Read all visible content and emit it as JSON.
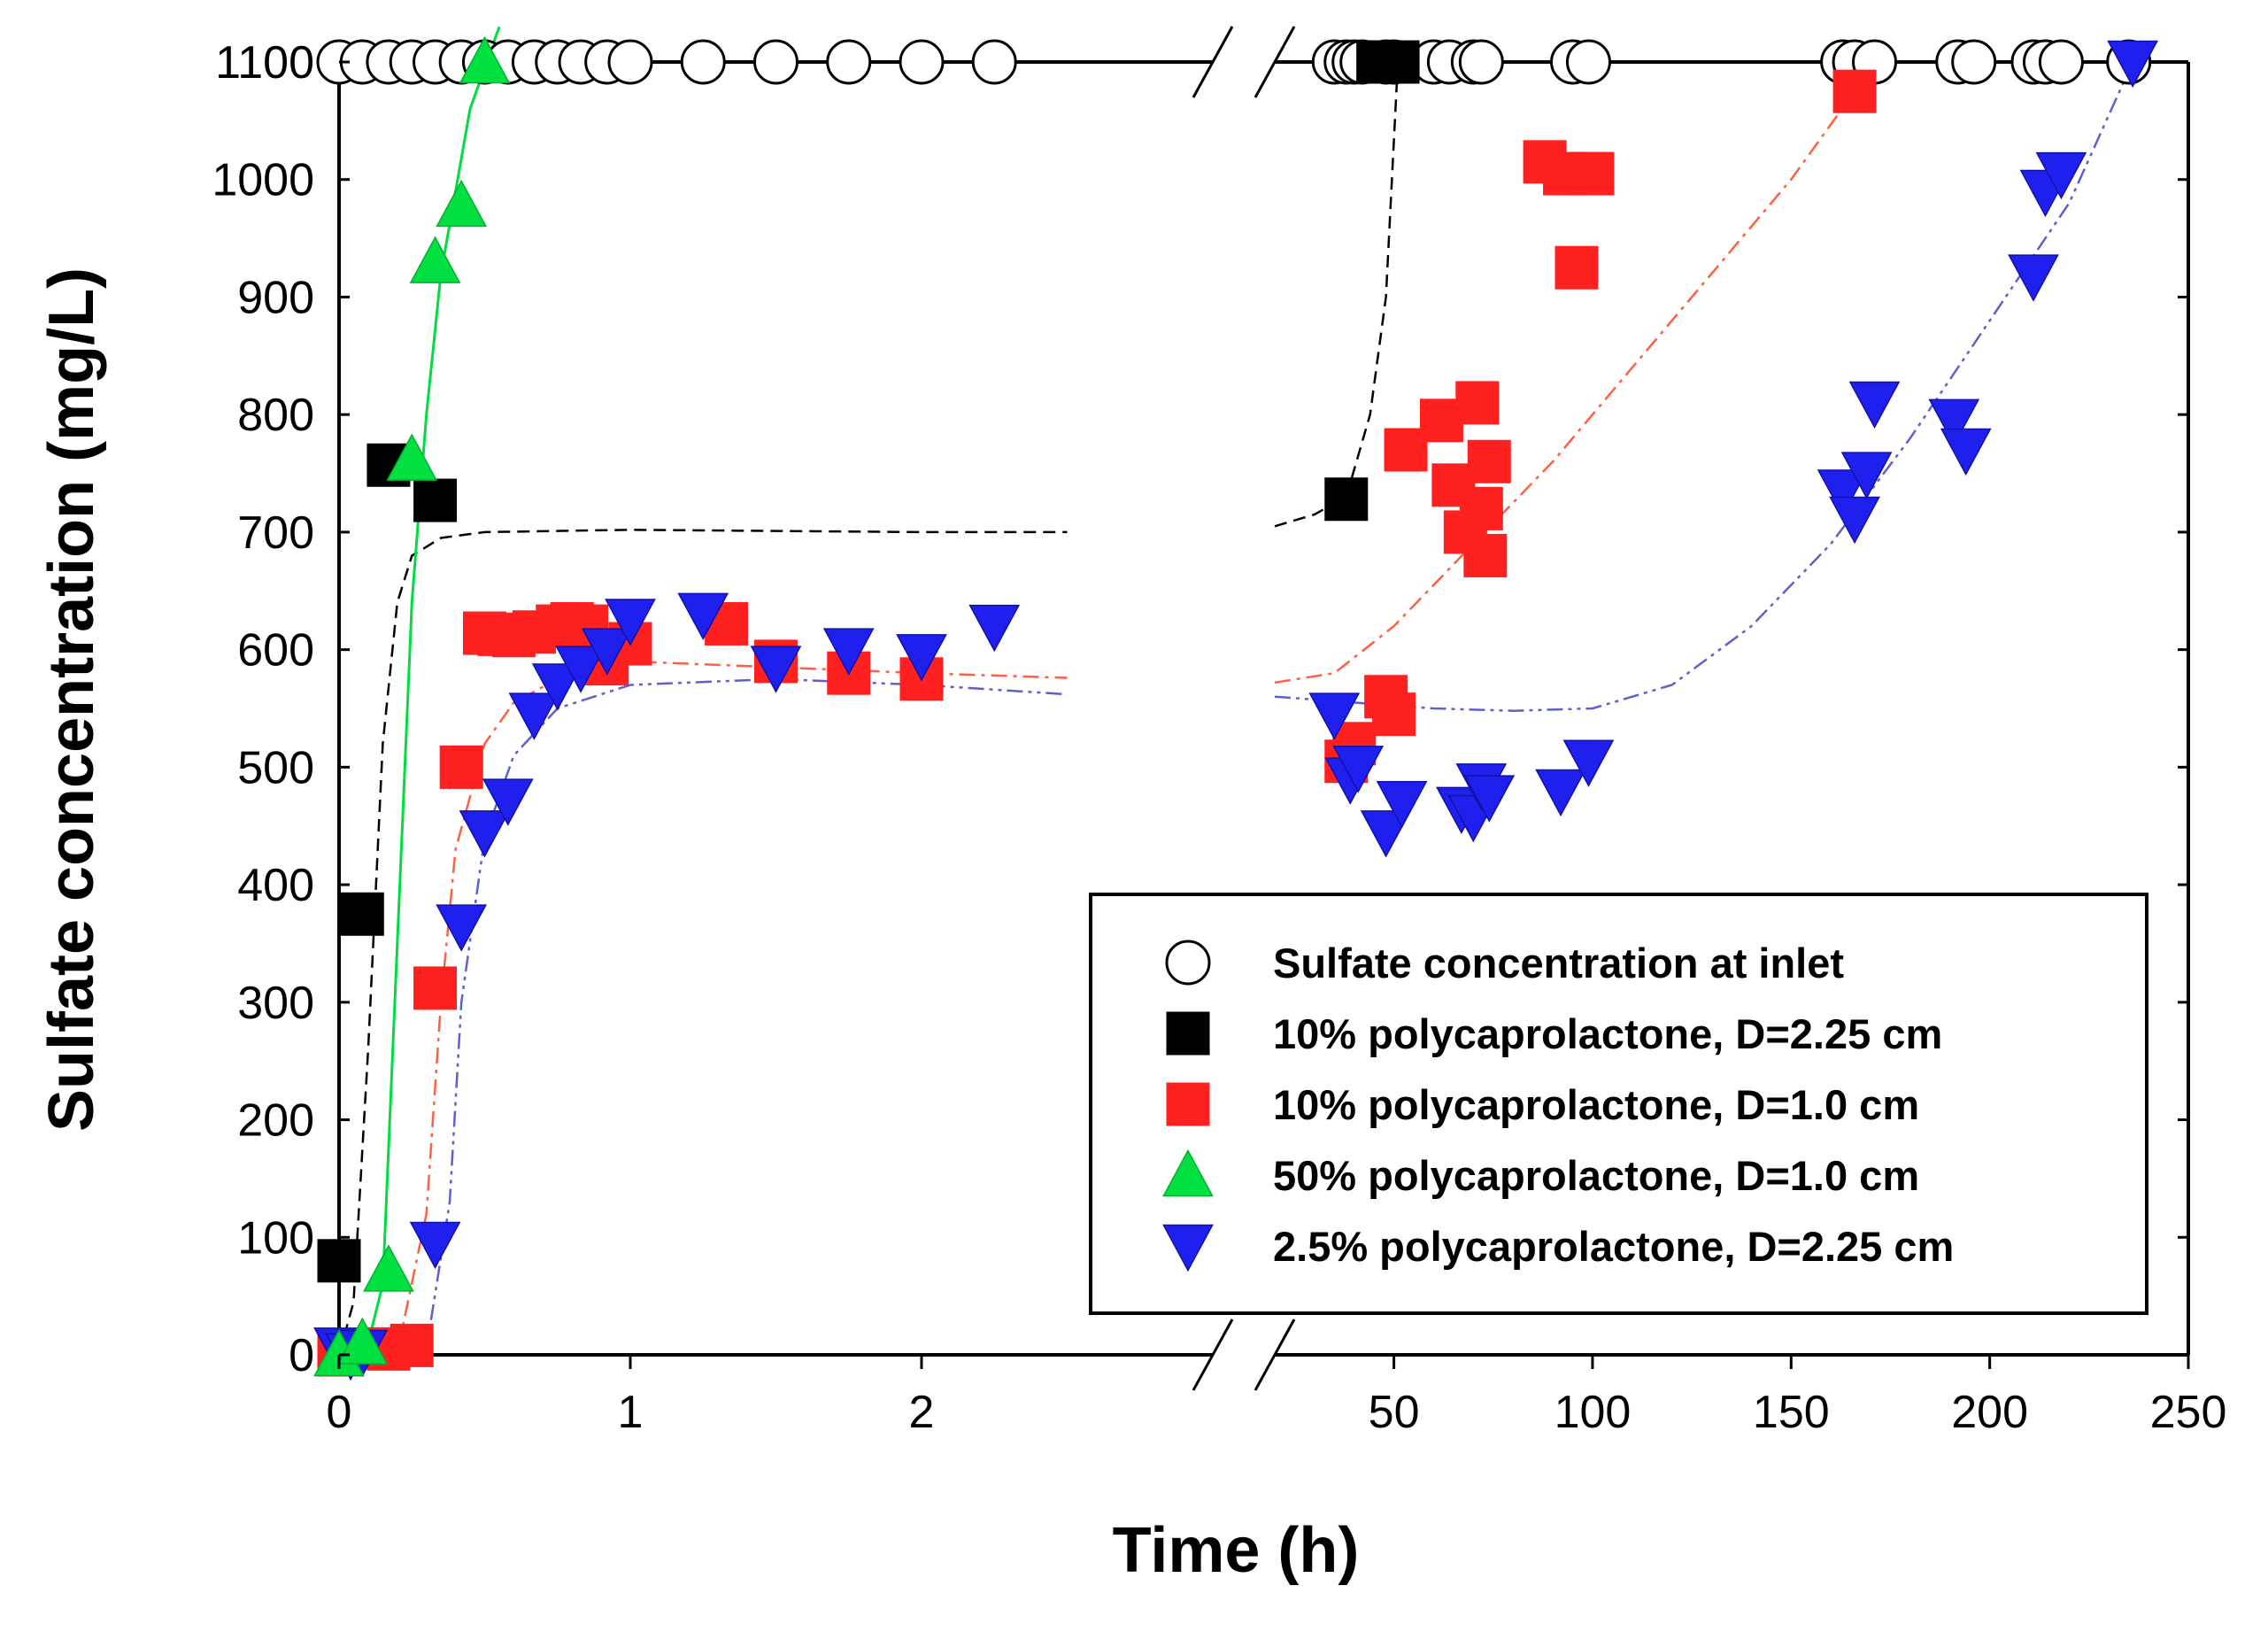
{
  "chart_data": {
    "type": "scatter",
    "xlabel": "Time (h)",
    "ylabel": "Sulfate concentration (mg/L)",
    "ylim": [
      0,
      1100
    ],
    "yticks": [
      0,
      100,
      200,
      300,
      400,
      500,
      600,
      700,
      800,
      900,
      1000,
      1100
    ],
    "axis_break": "broken x axis between 2.5 h and ~35 h",
    "x_segments": [
      {
        "xlim": [
          0,
          3
        ],
        "ticks": [
          0,
          1,
          2
        ]
      },
      {
        "xlim": [
          20,
          250
        ],
        "ticks": [
          50,
          100,
          150,
          200,
          250
        ]
      }
    ],
    "legend_position": "lower-right",
    "series": [
      {
        "name": "Sulfate concentration at inlet",
        "marker": "circle-open",
        "color": "#000000",
        "points": [
          [
            0,
            1100
          ],
          [
            0.08,
            1100
          ],
          [
            0.17,
            1100
          ],
          [
            0.25,
            1100
          ],
          [
            0.33,
            1100
          ],
          [
            0.42,
            1100
          ],
          [
            0.5,
            1100
          ],
          [
            0.58,
            1100
          ],
          [
            0.67,
            1100
          ],
          [
            0.75,
            1100
          ],
          [
            0.83,
            1100
          ],
          [
            0.92,
            1100
          ],
          [
            1,
            1100
          ],
          [
            1.25,
            1100
          ],
          [
            1.5,
            1100
          ],
          [
            1.75,
            1100
          ],
          [
            2,
            1100
          ],
          [
            2.25,
            1100
          ],
          [
            35,
            1100
          ],
          [
            38,
            1100
          ],
          [
            40,
            1100
          ],
          [
            42,
            1100
          ],
          [
            48,
            1100
          ],
          [
            50,
            1100
          ],
          [
            60,
            1100
          ],
          [
            64,
            1100
          ],
          [
            70,
            1100
          ],
          [
            72,
            1100
          ],
          [
            95,
            1100
          ],
          [
            99,
            1100
          ],
          [
            163,
            1100
          ],
          [
            166,
            1100
          ],
          [
            171,
            1100
          ],
          [
            192,
            1100
          ],
          [
            196,
            1100
          ],
          [
            211,
            1100
          ],
          [
            214,
            1100
          ],
          [
            218,
            1100
          ],
          [
            235,
            1100
          ]
        ]
      },
      {
        "name": "10% polycaprolactone, D=2.25 cm",
        "marker": "square",
        "color": "#000000",
        "points": [
          [
            0,
            80
          ],
          [
            0.08,
            375
          ],
          [
            0.17,
            757
          ],
          [
            0.33,
            727
          ],
          [
            38,
            728
          ],
          [
            46,
            1100
          ],
          [
            51,
            1100
          ]
        ]
      },
      {
        "name": "10% polycaprolactone, D=1.0 cm",
        "marker": "square",
        "color": "#ff2020",
        "points": [
          [
            0,
            0
          ],
          [
            0.17,
            5
          ],
          [
            0.25,
            8
          ],
          [
            0.33,
            312
          ],
          [
            0.42,
            500
          ],
          [
            0.5,
            614
          ],
          [
            0.55,
            613
          ],
          [
            0.6,
            612
          ],
          [
            0.67,
            615
          ],
          [
            0.75,
            620
          ],
          [
            0.8,
            622
          ],
          [
            0.85,
            620
          ],
          [
            0.92,
            588
          ],
          [
            1,
            605
          ],
          [
            1.33,
            622
          ],
          [
            1.5,
            590
          ],
          [
            1.75,
            580
          ],
          [
            2,
            575
          ],
          [
            38,
            505
          ],
          [
            40,
            520
          ],
          [
            48,
            560
          ],
          [
            50,
            545
          ],
          [
            53,
            770
          ],
          [
            62,
            795
          ],
          [
            65,
            740
          ],
          [
            68,
            700
          ],
          [
            71,
            810
          ],
          [
            72,
            720
          ],
          [
            73,
            680
          ],
          [
            74,
            760
          ],
          [
            88,
            1015
          ],
          [
            93,
            1005
          ],
          [
            96,
            925
          ],
          [
            100,
            1005
          ],
          [
            166,
            1075
          ]
        ]
      },
      {
        "name": "50% polycaprolactone, D=1.0 cm",
        "marker": "triangle-up",
        "color": "#00e040",
        "points": [
          [
            0,
            0
          ],
          [
            0.08,
            10
          ],
          [
            0.17,
            72
          ],
          [
            0.25,
            762
          ],
          [
            0.33,
            930
          ],
          [
            0.42,
            978
          ],
          [
            0.5,
            1100
          ]
        ]
      },
      {
        "name": "2.5% polycaprolactone, D=2.25 cm",
        "marker": "triangle-down",
        "color": "#2020ee",
        "points": [
          [
            0,
            5
          ],
          [
            0.04,
            0
          ],
          [
            0.08,
            3
          ],
          [
            0.33,
            95
          ],
          [
            0.42,
            365
          ],
          [
            0.5,
            445
          ],
          [
            0.58,
            472
          ],
          [
            0.67,
            545
          ],
          [
            0.75,
            570
          ],
          [
            0.83,
            585
          ],
          [
            0.92,
            600
          ],
          [
            1,
            625
          ],
          [
            1.25,
            630
          ],
          [
            1.5,
            585
          ],
          [
            1.75,
            600
          ],
          [
            2,
            595
          ],
          [
            2.25,
            620
          ],
          [
            35,
            545
          ],
          [
            39,
            490
          ],
          [
            41,
            500
          ],
          [
            48,
            445
          ],
          [
            52,
            470
          ],
          [
            67,
            465
          ],
          [
            70,
            458
          ],
          [
            72,
            485
          ],
          [
            74,
            475
          ],
          [
            92,
            480
          ],
          [
            99,
            505
          ],
          [
            163,
            735
          ],
          [
            166,
            712
          ],
          [
            169,
            750
          ],
          [
            171,
            810
          ],
          [
            191,
            795
          ],
          [
            194,
            770
          ],
          [
            211,
            918
          ],
          [
            214,
            990
          ],
          [
            218,
            1005
          ],
          [
            236,
            1100
          ]
        ]
      }
    ],
    "fit_curves": [
      {
        "series": "10% polycaprolactone, D=2.25 cm",
        "style": "dashed",
        "color": "#000000",
        "points": [
          [
            0,
            0
          ],
          [
            0.05,
            45
          ],
          [
            0.1,
            260
          ],
          [
            0.15,
            520
          ],
          [
            0.2,
            640
          ],
          [
            0.25,
            680
          ],
          [
            0.35,
            695
          ],
          [
            0.5,
            700
          ],
          [
            1,
            702
          ],
          [
            1.5,
            701
          ],
          [
            2,
            700
          ],
          [
            2.5,
            700
          ],
          [
            20,
            705
          ],
          [
            30,
            715
          ],
          [
            38,
            730
          ],
          [
            44,
            800
          ],
          [
            48,
            900
          ],
          [
            51,
            1100
          ]
        ]
      },
      {
        "series": "10% polycaprolactone, D=1.0 cm",
        "style": "dash-dot",
        "color": "#ff6040",
        "points": [
          [
            0,
            0
          ],
          [
            0.2,
            2
          ],
          [
            0.3,
            120
          ],
          [
            0.35,
            300
          ],
          [
            0.4,
            430
          ],
          [
            0.5,
            520
          ],
          [
            0.6,
            555
          ],
          [
            0.75,
            575
          ],
          [
            1,
            590
          ],
          [
            1.5,
            585
          ],
          [
            2,
            580
          ],
          [
            2.5,
            576
          ],
          [
            20,
            572
          ],
          [
            35,
            580
          ],
          [
            50,
            620
          ],
          [
            70,
            690
          ],
          [
            90,
            760
          ],
          [
            110,
            840
          ],
          [
            130,
            920
          ],
          [
            150,
            1000
          ],
          [
            166,
            1075
          ]
        ]
      },
      {
        "series": "50% polycaprolactone, D=1.0 cm",
        "style": "solid",
        "color": "#00dd40",
        "points": [
          [
            0,
            0
          ],
          [
            0.1,
            10
          ],
          [
            0.15,
            60
          ],
          [
            0.2,
            350
          ],
          [
            0.25,
            640
          ],
          [
            0.3,
            800
          ],
          [
            0.35,
            920
          ],
          [
            0.4,
            990
          ],
          [
            0.45,
            1060
          ],
          [
            0.55,
            1130
          ]
        ]
      },
      {
        "series": "2.5% polycaprolactone, D=2.25 cm",
        "style": "dash-dot-dot",
        "color": "#6060cc",
        "points": [
          [
            0,
            0
          ],
          [
            0.3,
            5
          ],
          [
            0.38,
            130
          ],
          [
            0.42,
            300
          ],
          [
            0.5,
            440
          ],
          [
            0.6,
            510
          ],
          [
            0.75,
            550
          ],
          [
            1,
            570
          ],
          [
            1.5,
            575
          ],
          [
            2,
            570
          ],
          [
            2.5,
            562
          ],
          [
            20,
            560
          ],
          [
            40,
            555
          ],
          [
            60,
            550
          ],
          [
            80,
            548
          ],
          [
            100,
            550
          ],
          [
            120,
            570
          ],
          [
            140,
            620
          ],
          [
            160,
            690
          ],
          [
            180,
            780
          ],
          [
            200,
            880
          ],
          [
            220,
            980
          ],
          [
            236,
            1100
          ]
        ]
      }
    ]
  }
}
